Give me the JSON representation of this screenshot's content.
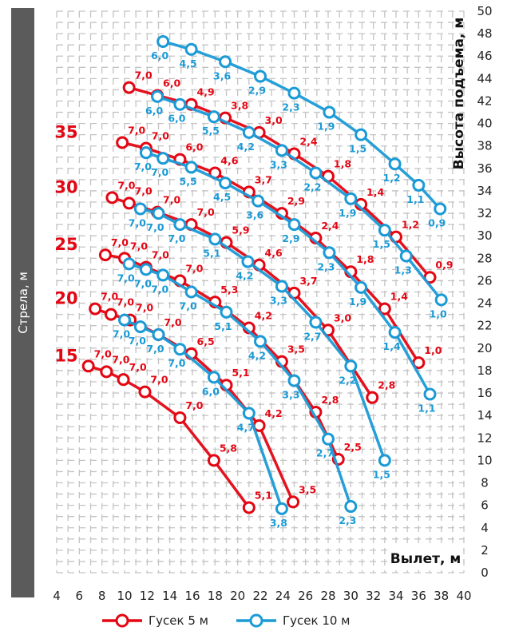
{
  "chart_data": {
    "type": "line",
    "title": "",
    "xlabel": "Вылет, м",
    "ylabel": "Высота подъема, м",
    "side_label": "Стрела, м",
    "xlim": [
      4,
      40
    ],
    "ylim": [
      0,
      50
    ],
    "xtick_step": 2,
    "ytick_step": 2,
    "grid": true,
    "legend_placement": "bottom",
    "legend": [
      {
        "label": "Гусек 5 м",
        "color": "#e30613"
      },
      {
        "label": "Гусек 10 м",
        "color": "#1b9ad6"
      }
    ],
    "boom_labels": [
      "15",
      "20",
      "25",
      "30",
      "35"
    ],
    "series": [
      {
        "name": "Гусек 5 м",
        "color": "#e30613",
        "curves": [
          {
            "boom": "15",
            "x": [
              6.8,
              8.4,
              9.9,
              11.8,
              14.9,
              17.9,
              21.0
            ],
            "y": [
              18.4,
              17.9,
              17.2,
              16.1,
              13.8,
              10.0,
              5.8
            ],
            "labels": [
              "7,0",
              "7,0",
              "7,0",
              "7,0",
              "7,0",
              "5,8",
              "5,1"
            ]
          },
          {
            "boom": "20",
            "x": [
              7.4,
              8.8,
              10.5,
              13.0,
              15.9,
              19.0,
              21.9,
              24.9
            ],
            "y": [
              23.5,
              23.0,
              22.5,
              21.2,
              19.5,
              16.7,
              13.1,
              6.3
            ],
            "labels": [
              "7,0",
              "7,0",
              "7,0",
              "7,0",
              "6,5",
              "5,1",
              "4,2",
              "3,5"
            ]
          },
          {
            "boom": "25",
            "x": [
              8.3,
              10.0,
              11.9,
              14.9,
              18.0,
              21.0,
              23.9,
              26.9,
              28.9
            ],
            "y": [
              28.3,
              28.0,
              27.2,
              26.0,
              24.1,
              21.8,
              18.8,
              14.3,
              10.1
            ],
            "labels": [
              "7,0",
              "7,0",
              "7,0",
              "7,0",
              "5,3",
              "4,2",
              "3,5",
              "2,8",
              "2,5"
            ]
          },
          {
            "boom": "30",
            "x": [
              8.9,
              10.4,
              12.9,
              15.9,
              19.0,
              21.9,
              25.0,
              28.0,
              31.9
            ],
            "y": [
              33.4,
              32.9,
              32.1,
              31.0,
              29.4,
              27.4,
              24.9,
              21.6,
              15.6
            ],
            "labels": [
              "7,0",
              "7,0",
              "7,0",
              "7,0",
              "5,9",
              "4,6",
              "3,7",
              "3,0",
              "2,8"
            ]
          },
          {
            "boom": "35",
            "x": [
              9.8,
              11.9,
              14.9,
              18.0,
              21.0,
              23.9,
              26.9,
              30.0,
              33.0,
              36.0
            ],
            "y": [
              38.3,
              37.8,
              36.8,
              35.6,
              33.9,
              32.0,
              29.8,
              26.8,
              23.5,
              18.7
            ],
            "labels": [
              "7,0",
              "7,0",
              "6,0",
              "4,6",
              "3,7",
              "2,9",
              "2,4",
              "1,8",
              "1,4",
              "1,0"
            ]
          },
          {
            "boom": "",
            "x": [
              10.4,
              12.9,
              15.9,
              18.9,
              21.9,
              25.0,
              28.0,
              30.9,
              34.0,
              37.0
            ],
            "y": [
              43.2,
              42.5,
              41.7,
              40.5,
              39.2,
              37.3,
              35.3,
              32.8,
              29.9,
              26.3
            ],
            "labels": [
              "7,0",
              "6,0",
              "4,9",
              "3,8",
              "3,0",
              "2,4",
              "1,8",
              "1,4",
              "1,2",
              "0,9"
            ]
          }
        ]
      },
      {
        "name": "Гусек 10 м",
        "color": "#1b9ad6",
        "curves": [
          {
            "boom": "15",
            "x": [
              10.0,
              11.4,
              13.0,
              14.9,
              17.9,
              21.0,
              23.9
            ],
            "y": [
              22.5,
              21.9,
              21.2,
              19.9,
              17.4,
              14.2,
              5.7
            ],
            "labels": [
              "7,0",
              "7,0",
              "7,0",
              "7,0",
              "6,0",
              "4,7",
              "3,8"
            ]
          },
          {
            "boom": "20",
            "x": [
              10.4,
              11.9,
              13.4,
              15.9,
              19.0,
              22.0,
              25.0,
              28.0,
              30.0
            ],
            "y": [
              27.5,
              27.0,
              26.5,
              25.0,
              23.2,
              20.6,
              17.1,
              11.9,
              5.9
            ],
            "labels": [
              "7,0",
              "7,0",
              "7,0",
              "7,0",
              "5,1",
              "4,2",
              "3,3",
              "2,7",
              "2,3"
            ]
          },
          {
            "boom": "25",
            "x": [
              11.4,
              13.0,
              14.9,
              18.0,
              20.9,
              23.9,
              26.9,
              30.0,
              33.0
            ],
            "y": [
              32.4,
              32.0,
              31.0,
              29.7,
              27.7,
              25.5,
              22.3,
              18.4,
              10.0
            ],
            "labels": [
              "7,0",
              "7,0",
              "7,0",
              "5,1",
              "4,2",
              "3,3",
              "2,7",
              "2,2",
              "1,5"
            ]
          },
          {
            "boom": "30",
            "x": [
              11.9,
              13.4,
              15.9,
              18.9,
              21.8,
              25.0,
              28.1,
              30.9,
              33.9,
              37.0
            ],
            "y": [
              37.4,
              36.9,
              36.1,
              34.7,
              33.1,
              31.0,
              28.5,
              25.4,
              21.4,
              15.9
            ],
            "labels": [
              "7,0",
              "7,0",
              "5,5",
              "4,5",
              "3,6",
              "2,9",
              "2,3",
              "1,9",
              "1,4",
              "1,1"
            ]
          },
          {
            "boom": "35",
            "x": [
              12.9,
              14.9,
              17.9,
              21.0,
              23.9,
              26.9,
              30.0,
              33.0,
              34.9,
              38.0
            ],
            "y": [
              42.4,
              41.7,
              40.6,
              39.2,
              37.6,
              35.6,
              33.3,
              30.5,
              28.2,
              24.3
            ],
            "labels": [
              "6,0",
              "6,0",
              "5,5",
              "4,2",
              "3,3",
              "2,2",
              "1,9",
              "1,5",
              "1,3",
              "1,0"
            ]
          },
          {
            "boom": "",
            "x": [
              13.4,
              15.9,
              18.9,
              22.0,
              25.0,
              28.1,
              30.9,
              33.9,
              36.0,
              37.9
            ],
            "y": [
              47.3,
              46.6,
              45.5,
              44.2,
              42.7,
              41.0,
              39.0,
              36.4,
              34.5,
              32.4
            ],
            "labels": [
              "6,0",
              "4,5",
              "3,6",
              "2,9",
              "2,3",
              "1,9",
              "1,5",
              "1,2",
              "1,1",
              "0,9"
            ]
          }
        ]
      }
    ]
  }
}
